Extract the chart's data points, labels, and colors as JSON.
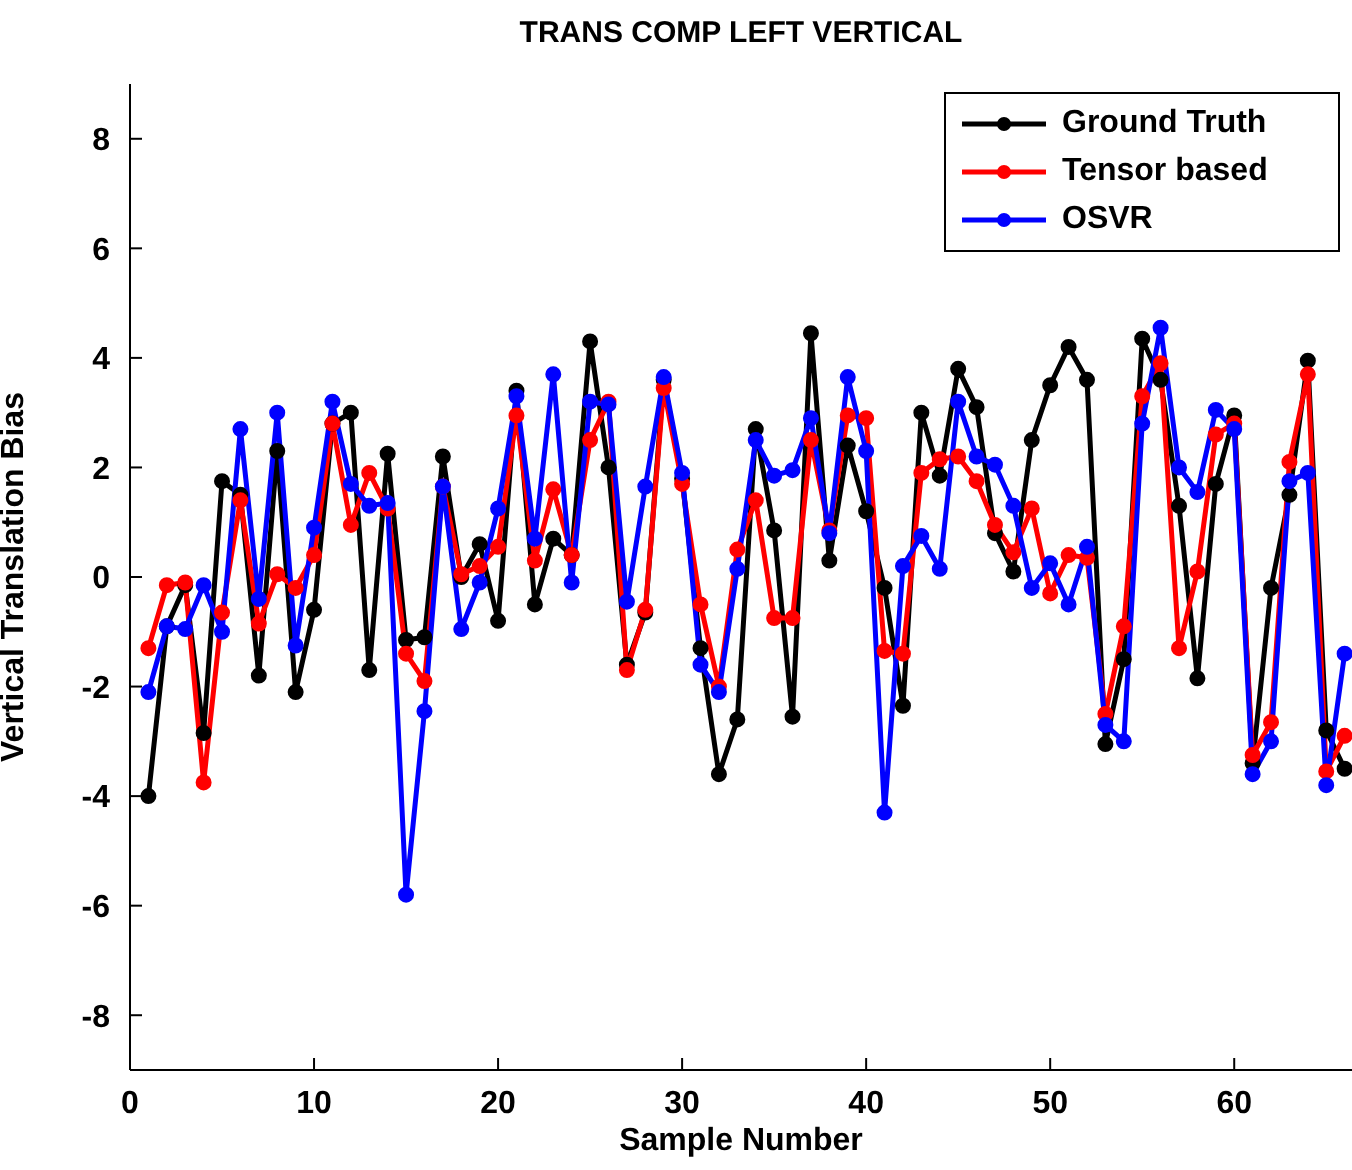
{
  "chart_data": {
    "type": "line",
    "title": "TRANS COMP LEFT VERTICAL",
    "xlabel": "Sample Number",
    "ylabel": "Vertical Translation Bias",
    "x": [
      1,
      2,
      3,
      4,
      5,
      6,
      7,
      8,
      9,
      10,
      11,
      12,
      13,
      14,
      15,
      16,
      17,
      18,
      19,
      20,
      21,
      22,
      23,
      24,
      25,
      26,
      27,
      28,
      29,
      30,
      31,
      32,
      33,
      34,
      35,
      36,
      37,
      38,
      39,
      40,
      41,
      42,
      43,
      44,
      45,
      46,
      47,
      48,
      49,
      50,
      51,
      52,
      53,
      54,
      55,
      56,
      57,
      58,
      59,
      60,
      61,
      62,
      63,
      64,
      65,
      66
    ],
    "series": [
      {
        "name": "Ground Truth",
        "color": "#000000",
        "values": [
          -4.0,
          -0.9,
          -0.15,
          -2.85,
          1.75,
          1.5,
          -1.8,
          2.3,
          -2.1,
          -0.6,
          2.8,
          3.0,
          -1.7,
          2.25,
          -1.15,
          -1.1,
          2.2,
          0.0,
          0.6,
          -0.8,
          3.4,
          -0.5,
          0.7,
          0.4,
          4.3,
          2.0,
          -1.6,
          -0.65,
          3.6,
          1.8,
          -1.3,
          -3.6,
          -2.6,
          2.7,
          0.85,
          -2.55,
          4.45,
          0.3,
          2.4,
          1.2,
          -0.2,
          -2.35,
          3.0,
          1.85,
          3.8,
          3.1,
          0.8,
          0.1,
          2.5,
          3.5,
          4.2,
          3.6,
          -3.05,
          -1.5,
          4.35,
          3.6,
          1.3,
          -1.85,
          1.7,
          2.95,
          -3.4,
          -0.2,
          1.5,
          3.95,
          -2.8,
          -3.5
        ]
      },
      {
        "name": "Tensor based",
        "color": "#ff0000",
        "values": [
          -1.3,
          -0.15,
          -0.1,
          -3.75,
          -0.65,
          1.4,
          -0.85,
          0.05,
          -0.2,
          0.4,
          2.8,
          0.95,
          1.9,
          1.25,
          -1.4,
          -1.9,
          1.65,
          0.05,
          0.2,
          0.55,
          2.95,
          0.3,
          1.6,
          0.4,
          2.5,
          3.2,
          -1.7,
          -0.6,
          3.45,
          1.7,
          -0.5,
          -2.0,
          0.5,
          1.4,
          -0.75,
          -0.75,
          2.5,
          0.85,
          2.95,
          2.9,
          -1.35,
          -1.4,
          1.9,
          2.15,
          2.2,
          1.75,
          0.95,
          0.45,
          1.25,
          -0.3,
          0.4,
          0.35,
          -2.5,
          -0.9,
          3.3,
          3.9,
          -1.3,
          0.1,
          2.6,
          2.8,
          -3.25,
          -2.65,
          2.1,
          3.7,
          -3.55,
          -2.9
        ]
      },
      {
        "name": "OSVR",
        "color": "#0000ff",
        "values": [
          -2.1,
          -0.9,
          -0.95,
          -0.15,
          -1.0,
          2.7,
          -0.4,
          3.0,
          -1.25,
          0.9,
          3.2,
          1.7,
          1.3,
          1.35,
          -5.8,
          -2.45,
          1.65,
          -0.95,
          -0.1,
          1.25,
          3.3,
          0.7,
          3.7,
          -0.1,
          3.2,
          3.15,
          -0.45,
          1.65,
          3.65,
          1.9,
          -1.6,
          -2.1,
          0.15,
          2.5,
          1.85,
          1.95,
          2.9,
          0.8,
          3.65,
          2.3,
          -4.3,
          0.2,
          0.75,
          0.15,
          3.2,
          2.2,
          2.05,
          1.3,
          -0.2,
          0.25,
          -0.5,
          0.55,
          -2.7,
          -3.0,
          2.8,
          4.55,
          2.0,
          1.55,
          3.05,
          2.7,
          -3.6,
          -3.0,
          1.75,
          1.9,
          -3.8,
          -1.4
        ]
      }
    ],
    "xlim": [
      0,
      66.4
    ],
    "xticks": [
      0,
      10,
      20,
      30,
      40,
      50,
      60
    ],
    "ylim": [
      -9,
      9
    ],
    "yticks": [
      -8,
      -6,
      -4,
      -2,
      0,
      2,
      4,
      6,
      8
    ],
    "legend": "top right",
    "marker": "circle",
    "line_style": "solid",
    "grid": false
  }
}
